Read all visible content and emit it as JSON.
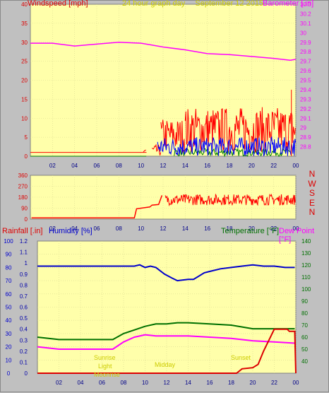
{
  "header": {
    "left_label": "Windspeed [mph]",
    "center_label": "24 hour graph day",
    "date": "September 12 2015",
    "right_label": "Barometer [.in]"
  },
  "colors": {
    "plot_bg": "#ffffaa",
    "frame": "#c0c0c0",
    "wind": "#ff0000",
    "gust_bar": "#0000ff",
    "calm": "#008000",
    "barometer": "#ff00ff",
    "direction": "#ff0000",
    "humidity": "#0000cc",
    "temperature": "#007000",
    "dew_point": "#ff00ff",
    "rain": "#dd0000",
    "annotation": "#cccc00"
  },
  "direction_letters": [
    "N",
    "W",
    "S",
    "E",
    "N"
  ],
  "bottom_panel": {
    "rain_label": "Rainfall [.in]",
    "humidity_label": "Humidity [%]",
    "temp_label": "Temperature [°F]",
    "dew_label": "Dew Point [°F]"
  },
  "annotations": [
    "Sunrise",
    "Light",
    "Moonrise",
    "Midday",
    "Sunset"
  ],
  "chart_data": [
    {
      "type": "line",
      "title": "24 hour graph day",
      "xlabel": "",
      "ylabel": "Windspeed [mph]",
      "ylabel_right": "Barometer [.in]",
      "x_ticks": [
        "02",
        "04",
        "06",
        "08",
        "10",
        "12",
        "14",
        "16",
        "18",
        "20",
        "22",
        "00"
      ],
      "ylim": [
        0,
        40
      ],
      "y_ticks": [
        0,
        5,
        10,
        15,
        20,
        25,
        30,
        35,
        40
      ],
      "y2lim": [
        28.7,
        30.3
      ],
      "y2_ticks": [
        "28.8",
        "28.9",
        "29",
        "29.1",
        "29.2",
        "29.3",
        "29.4",
        "29.5",
        "29.6",
        "29.7",
        "29.8",
        "29.9",
        "30",
        "30.1",
        "30.2",
        "30.3"
      ],
      "series": [
        {
          "name": "Barometer",
          "axis": "right",
          "x": [
            0,
            2,
            4,
            6,
            8,
            10,
            11,
            12,
            14,
            16,
            18,
            20,
            22,
            23.5,
            24
          ],
          "values": [
            29.89,
            29.89,
            29.86,
            29.88,
            29.9,
            29.89,
            29.87,
            29.85,
            29.82,
            29.78,
            29.77,
            29.75,
            29.73,
            29.71,
            29.72
          ]
        },
        {
          "name": "Windspeed",
          "axis": "left",
          "style": "spiky",
          "segments": [
            {
              "x": [
                10.2,
                10.5
              ],
              "min": 0,
              "max": 3
            },
            {
              "x": [
                11.0,
                11.8
              ],
              "min": 0,
              "max": 3
            },
            {
              "x": [
                11.8,
                14.0
              ],
              "min": 1,
              "max": 10
            },
            {
              "x": [
                14.0,
                24.0
              ],
              "min": 1,
              "max": 13
            }
          ],
          "peak": {
            "x": 23.6,
            "value": 17.5
          }
        },
        {
          "name": "Gust bar",
          "axis": "left",
          "style": "spiky",
          "segments": [
            {
              "x": [
                11.5,
                24.0
              ],
              "min": 0,
              "max": 5
            }
          ]
        },
        {
          "name": "Calm",
          "axis": "left",
          "style": "spiky",
          "segments": [
            {
              "x": [
                0,
                10.5
              ],
              "min": 0,
              "max": 0
            },
            {
              "x": [
                13,
                23.5
              ],
              "min": 0,
              "max": 2
            }
          ]
        }
      ]
    },
    {
      "type": "line",
      "ylabel": "",
      "ylim": [
        0,
        360
      ],
      "y_ticks": [
        0,
        90,
        180,
        270,
        360
      ],
      "x_ticks": [
        "02",
        "04",
        "06",
        "08",
        "10",
        "12",
        "14",
        "16",
        "18",
        "20",
        "22",
        "00"
      ],
      "series": [
        {
          "name": "Wind direction",
          "x": [
            0.1,
            9.4,
            9.6,
            10.8,
            11.0,
            11.6,
            11.9,
            12.2,
            14,
            16,
            18,
            20,
            22,
            23.5,
            24
          ],
          "values": [
            10,
            10,
            85,
            100,
            115,
            120,
            195,
            235,
            180,
            165,
            150,
            140,
            135,
            140,
            145
          ]
        }
      ]
    },
    {
      "type": "line",
      "ylabel": "Humidity [%]",
      "ylim": [
        0,
        100
      ],
      "y_ticks": [
        0,
        10,
        20,
        30,
        40,
        50,
        60,
        70,
        80,
        90,
        100
      ],
      "rain_ylim": [
        0,
        1.2
      ],
      "rain_ticks": [
        "0",
        "0.1",
        "0.2",
        "0.3",
        "0.4",
        "0.5",
        "0.6",
        "0.7",
        "0.8",
        "0.9",
        "1",
        "1.1",
        "1.2"
      ],
      "temp_ylim": [
        30,
        140
      ],
      "temp_ticks": [
        40,
        50,
        60,
        70,
        80,
        90,
        100,
        110,
        120,
        130,
        140
      ],
      "x_ticks": [
        "02",
        "04",
        "06",
        "08",
        "10",
        "12",
        "14",
        "16",
        "18",
        "20",
        "22",
        "00"
      ],
      "series": [
        {
          "name": "Humidity",
          "axis": "humidity",
          "x": [
            0,
            6,
            8,
            9,
            9.5,
            10,
            10.5,
            11,
            11.8,
            12.5,
            13,
            14,
            14.5,
            15.5,
            16,
            17,
            18,
            19,
            20,
            21,
            22,
            23,
            23.9
          ],
          "values": [
            81,
            81,
            81,
            81,
            82,
            80,
            81,
            80,
            75,
            72,
            70,
            71,
            71,
            76,
            77,
            79,
            80,
            81,
            82,
            81,
            81,
            80,
            80
          ]
        },
        {
          "name": "Temperature",
          "axis": "temp",
          "x": [
            0,
            2,
            4,
            6,
            7,
            8,
            9,
            10,
            11,
            12,
            13,
            14,
            16,
            18,
            20,
            22,
            23.9
          ],
          "values": [
            60,
            58,
            58,
            58,
            58,
            63,
            66,
            69,
            71,
            71,
            72,
            72,
            71,
            70,
            67,
            67,
            67
          ]
        },
        {
          "name": "Dew Point",
          "axis": "temp",
          "x": [
            0,
            2,
            4,
            6,
            7,
            8,
            9,
            10,
            11,
            12,
            14,
            16,
            18,
            20,
            22,
            23.9
          ],
          "values": [
            52,
            50,
            50,
            50,
            50,
            56,
            60,
            62,
            61,
            61,
            61,
            60,
            59,
            57,
            56,
            55
          ]
        },
        {
          "name": "Rainfall",
          "axis": "rain",
          "x": [
            0,
            18.5,
            19,
            20,
            20.5,
            21,
            22,
            22.5,
            23.2,
            23.4,
            23.9,
            24
          ],
          "values": [
            0,
            0,
            0.04,
            0.05,
            0.08,
            0.2,
            0.4,
            0.4,
            0.4,
            0.38,
            0.38,
            0
          ]
        }
      ]
    }
  ]
}
